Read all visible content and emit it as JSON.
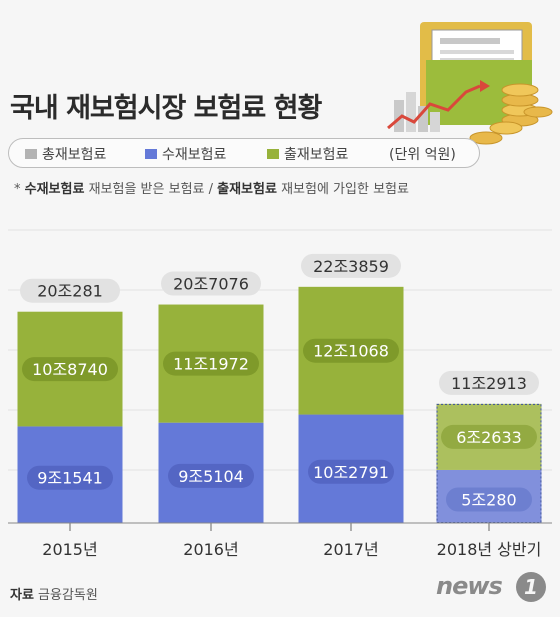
{
  "title": "국내 재보험시장 보험료 현황",
  "legend": {
    "items": [
      {
        "label": "총재보험료",
        "color": "#b3b3b3"
      },
      {
        "label": "수재보험료",
        "color": "#6479d8"
      },
      {
        "label": "출재보험료",
        "color": "#97b23b"
      }
    ],
    "unit": "(단위 억원)"
  },
  "note": {
    "prefix": "* ",
    "term1": "수재보험료",
    "desc1": " 재보험을 받은 보험료 / ",
    "term2": "출재보험료",
    "desc2": " 재보험에 가입한 보험료"
  },
  "source": {
    "label": "자료",
    "text": " 금융감독원"
  },
  "logo": {
    "text": "news",
    "mark": "1"
  },
  "chart_data": {
    "type": "bar",
    "stacked": true,
    "categories": [
      "2015년",
      "2016년",
      "2017년",
      "2018년 상반기"
    ],
    "series": [
      {
        "name": "수재보험료",
        "values": [
          91541,
          95104,
          102791,
          50280
        ],
        "labels": [
          "9조1541",
          "9조5104",
          "10조2791",
          "5조280"
        ],
        "color": "#6479d8"
      },
      {
        "name": "출재보험료",
        "values": [
          108740,
          111972,
          121068,
          62633
        ],
        "labels": [
          "10조8740",
          "11조1972",
          "12조1068",
          "6조2633"
        ],
        "color": "#97b23b"
      }
    ],
    "totals": {
      "name": "총재보험료",
      "values": [
        200281,
        207076,
        223859,
        112913
      ],
      "labels": [
        "20조281",
        "20조7076",
        "22조3859",
        "11조2913"
      ]
    },
    "partial_last": true
  }
}
